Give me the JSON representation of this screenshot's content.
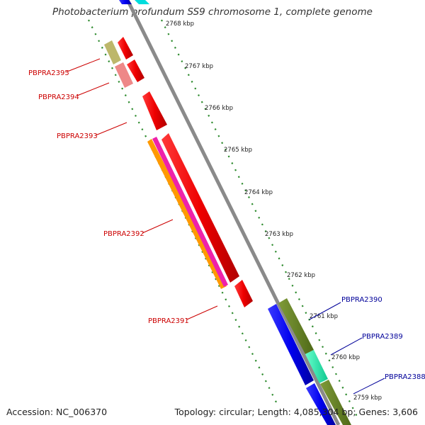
{
  "title": "Photobacterium profundum SS9 chromosome 1, complete genome",
  "footer": {
    "accession": "Accession: NC_006370",
    "stats": "Topology: circular; Length: 4,085,304 bp; Genes: 3,606"
  },
  "scale_labels": [
    "2768 kbp",
    "2767 kbp",
    "2766 kbp",
    "2765 kbp",
    "2764 kbp",
    "2763 kbp",
    "2762 kbp",
    "2761 kbp",
    "2760 kbp",
    "2759 kbp"
  ],
  "gene_labels_left": [
    "PBPRA2395",
    "PBPRA2394",
    "PBPRA2393",
    "PBPRA2392",
    "PBPRA2391"
  ],
  "gene_labels_right": [
    "PBPRA2390",
    "PBPRA2389",
    "PBPRA2388"
  ],
  "colors": {
    "left_label": "#cc0000",
    "right_label": "#000099",
    "red_gene": "#ee0000",
    "tick": "#2e8b2e"
  }
}
